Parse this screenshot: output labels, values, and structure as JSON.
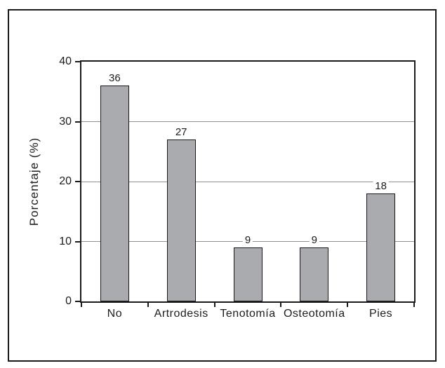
{
  "chart_data": {
    "type": "bar",
    "categories": [
      "No",
      "Artrodesis",
      "Tenotomía",
      "Osteotomía",
      "Pies"
    ],
    "values": [
      36,
      27,
      9,
      9,
      18
    ],
    "value_labels": [
      "36",
      "27",
      "9",
      "9",
      "18"
    ],
    "title": "",
    "xlabel": "",
    "ylabel": "Porcentaje (%)",
    "ylim": [
      0,
      40
    ],
    "yticks": [
      0,
      10,
      20,
      30,
      40
    ],
    "ytick_labels": [
      "0",
      "10",
      "20",
      "30",
      "40"
    ],
    "gridlines": [
      10,
      20,
      30
    ],
    "grid": "horizontal",
    "legend": "none",
    "colors": {
      "bar_fill": "#a9abae",
      "bar_border": "#1a1a1a",
      "gridline": "#8f9194",
      "frame": "#1a1a1a",
      "text": "#1c1c1c",
      "background": "#ffffff"
    }
  }
}
